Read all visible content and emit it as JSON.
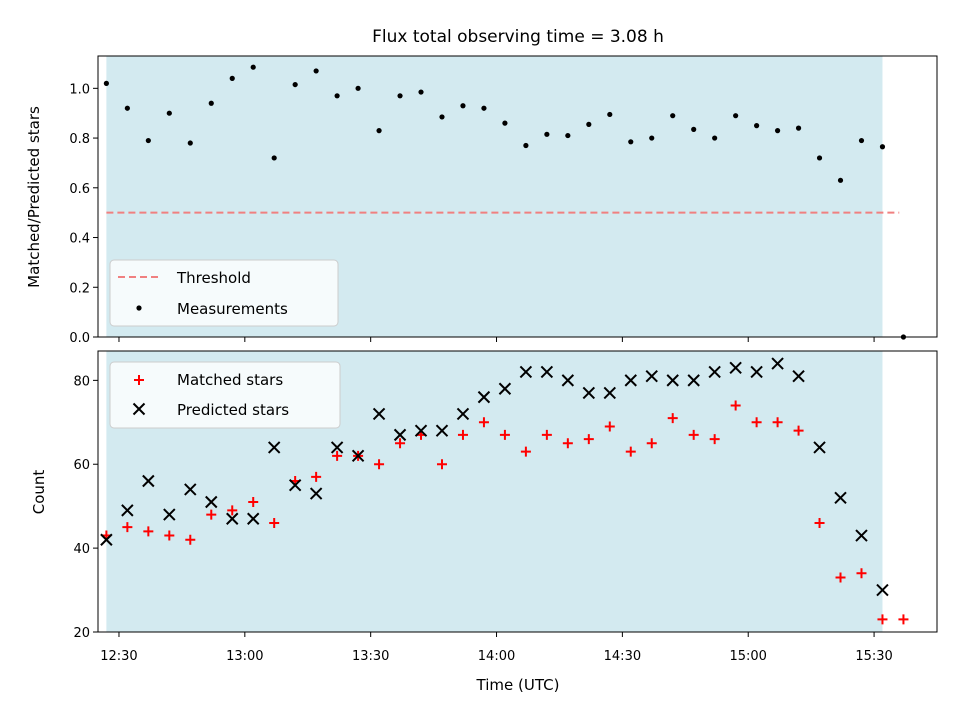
{
  "chart_data": [
    {
      "type": "scatter",
      "title": "Flux total observing time = 3.08 h",
      "ylabel": "Matched/Predicted stars",
      "xlabel": "",
      "xlim": [
        "12:25",
        "15:45"
      ],
      "ylim": [
        0.0,
        1.13
      ],
      "observing_window": [
        "12:27",
        "15:32"
      ],
      "window_color": "#d3eaf0",
      "yticks": [
        "0.0",
        "0.2",
        "0.4",
        "0.6",
        "0.8",
        "1.0"
      ],
      "legend_position": "lower-left",
      "threshold": {
        "name": "Threshold",
        "value": 0.5,
        "x": [
          "12:27",
          "15:36"
        ],
        "color": "#f08080",
        "style": "dashed"
      },
      "series": [
        {
          "name": "Measurements",
          "marker": "dot",
          "color": "#000000",
          "x": [
            "12:27",
            "12:32",
            "12:37",
            "12:42",
            "12:47",
            "12:52",
            "12:57",
            "13:02",
            "13:07",
            "13:12",
            "13:17",
            "13:22",
            "13:27",
            "13:32",
            "13:37",
            "13:42",
            "13:47",
            "13:52",
            "13:57",
            "14:02",
            "14:07",
            "14:12",
            "14:17",
            "14:22",
            "14:27",
            "14:32",
            "14:37",
            "14:42",
            "14:47",
            "14:52",
            "14:57",
            "15:02",
            "15:07",
            "15:12",
            "15:17",
            "15:22",
            "15:27",
            "15:32",
            "15:37"
          ],
          "y": [
            1.02,
            0.92,
            0.79,
            0.9,
            0.78,
            0.94,
            1.04,
            1.085,
            0.72,
            1.015,
            1.07,
            0.97,
            1.0,
            0.83,
            0.97,
            0.985,
            0.885,
            0.93,
            0.92,
            0.86,
            0.77,
            0.815,
            0.81,
            0.855,
            0.895,
            0.785,
            0.8,
            0.89,
            0.835,
            0.8,
            0.89,
            0.85,
            0.83,
            0.84,
            0.72,
            0.63,
            0.79,
            0.765,
            0.0
          ]
        }
      ]
    },
    {
      "type": "scatter",
      "title": "",
      "ylabel": "Count",
      "xlabel": "Time (UTC)",
      "xlim": [
        "12:25",
        "15:45"
      ],
      "ylim": [
        20,
        87
      ],
      "observing_window": [
        "12:27",
        "15:32"
      ],
      "window_color": "#d3eaf0",
      "yticks": [
        "20",
        "40",
        "60",
        "80"
      ],
      "xticks": [
        "12:30",
        "13:00",
        "13:30",
        "14:00",
        "14:30",
        "15:00",
        "15:30"
      ],
      "legend_position": "upper-left",
      "series": [
        {
          "name": "Matched stars",
          "marker": "plus",
          "color": "#ff0000",
          "x": [
            "12:27",
            "12:32",
            "12:37",
            "12:42",
            "12:47",
            "12:52",
            "12:57",
            "13:02",
            "13:07",
            "13:12",
            "13:17",
            "13:22",
            "13:27",
            "13:32",
            "13:37",
            "13:42",
            "13:47",
            "13:52",
            "13:57",
            "14:02",
            "14:07",
            "14:12",
            "14:17",
            "14:22",
            "14:27",
            "14:32",
            "14:37",
            "14:42",
            "14:47",
            "14:52",
            "14:57",
            "15:02",
            "15:07",
            "15:12",
            "15:17",
            "15:22",
            "15:27",
            "15:32",
            "15:37"
          ],
          "y": [
            43,
            45,
            44,
            43,
            42,
            48,
            49,
            51,
            46,
            56,
            57,
            62,
            62,
            60,
            65,
            67,
            60,
            67,
            70,
            67,
            63,
            67,
            65,
            66,
            69,
            63,
            65,
            71,
            67,
            66,
            74,
            70,
            70,
            68,
            46,
            33,
            34,
            23,
            23
          ]
        },
        {
          "name": "Predicted stars",
          "marker": "x",
          "color": "#000000",
          "x": [
            "12:27",
            "12:32",
            "12:37",
            "12:42",
            "12:47",
            "12:52",
            "12:57",
            "13:02",
            "13:07",
            "13:12",
            "13:17",
            "13:22",
            "13:27",
            "13:32",
            "13:37",
            "13:42",
            "13:47",
            "13:52",
            "13:57",
            "14:02",
            "14:07",
            "14:12",
            "14:17",
            "14:22",
            "14:27",
            "14:32",
            "14:37",
            "14:42",
            "14:47",
            "14:52",
            "14:57",
            "15:02",
            "15:07",
            "15:12",
            "15:17",
            "15:22",
            "15:27",
            "15:32"
          ],
          "y": [
            42,
            49,
            56,
            48,
            54,
            51,
            47,
            47,
            64,
            55,
            53,
            64,
            62,
            72,
            67,
            68,
            68,
            72,
            76,
            78,
            82,
            82,
            80,
            77,
            77,
            80,
            81,
            80,
            80,
            82,
            83,
            82,
            84,
            81,
            64,
            52,
            43,
            30
          ]
        }
      ]
    }
  ]
}
